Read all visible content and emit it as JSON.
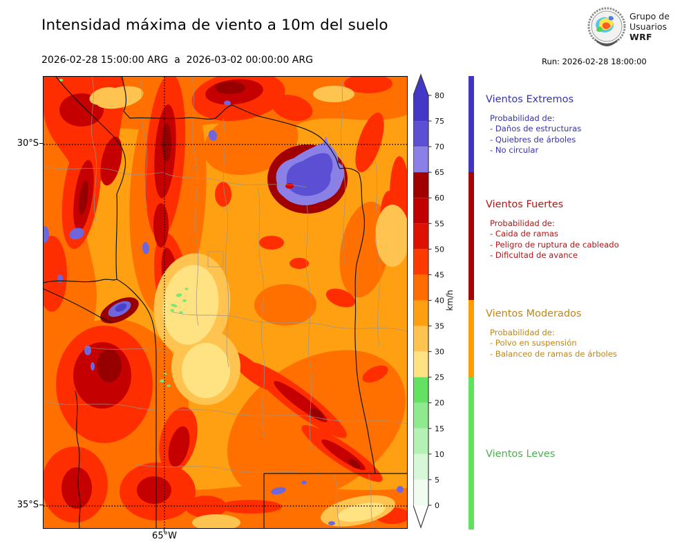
{
  "header": {
    "title": "Intensidad máxima de viento a 10m del suelo",
    "period": "2026-02-28 15:00:00 ARG  a  2026-03-02 00:00:00 ARG",
    "run": "Run: 2026-02-28 18:00:00",
    "logo": {
      "line1": "Grupo de",
      "line2": "Usuarios",
      "line3": "WRF"
    }
  },
  "map": {
    "lat_labels": [
      "30°S",
      "35°S"
    ],
    "lon_labels": [
      "65°W"
    ]
  },
  "colorbar": {
    "unit": "km/h",
    "tick_values": [
      80,
      75,
      70,
      65,
      60,
      55,
      50,
      45,
      40,
      35,
      30,
      25,
      20,
      15,
      10,
      5,
      0
    ],
    "value_min": 0,
    "value_max": 80,
    "over_color": "#4238C5",
    "under_color": "#FFFFFF",
    "segments": [
      {
        "from": 75,
        "to": 80,
        "color": "#4238C5"
      },
      {
        "from": 70,
        "to": 75,
        "color": "#5B50D3"
      },
      {
        "from": 65,
        "to": 70,
        "color": "#8A80E5"
      },
      {
        "from": 60,
        "to": 65,
        "color": "#A00000"
      },
      {
        "from": 55,
        "to": 60,
        "color": "#C00000"
      },
      {
        "from": 50,
        "to": 55,
        "color": "#E01000"
      },
      {
        "from": 45,
        "to": 50,
        "color": "#FF3A00"
      },
      {
        "from": 40,
        "to": 45,
        "color": "#FF6D00"
      },
      {
        "from": 35,
        "to": 40,
        "color": "#FFA013"
      },
      {
        "from": 30,
        "to": 35,
        "color": "#FFC34F"
      },
      {
        "from": 25,
        "to": 30,
        "color": "#FFE382"
      },
      {
        "from": 20,
        "to": 25,
        "color": "#63E163"
      },
      {
        "from": 15,
        "to": 20,
        "color": "#8FEA8F"
      },
      {
        "from": 10,
        "to": 15,
        "color": "#B4F1B4"
      },
      {
        "from": 5,
        "to": 10,
        "color": "#D7F8D7"
      },
      {
        "from": 0,
        "to": 5,
        "color": "#EFFCEF"
      }
    ]
  },
  "categories": [
    {
      "name": "Vientos Extremos",
      "text_color": "#3534AE",
      "bar_color": "#4334C6",
      "range_kmh": [
        65,
        90
      ],
      "prob_title": "Probabilidad de:",
      "items": [
        "- Daños de estructuras",
        "- Quiebres de árboles",
        "- No circular"
      ]
    },
    {
      "name": "Vientos Fuertes",
      "text_color": "#B01515",
      "bar_color": "#A50505",
      "range_kmh": [
        40,
        65
      ],
      "prob_title": "Probabilidad de:",
      "items": [
        "- Caida de ramas",
        "- Peligro de ruptura de cableado",
        "- Dificultad de avance"
      ]
    },
    {
      "name": "Vientos Moderados",
      "text_color": "#BE8617",
      "bar_color": "#FF9C00",
      "range_kmh": [
        25,
        40
      ],
      "prob_title": "Probabilidad de:",
      "items": [
        "- Polvo en suspensión",
        "- Balanceo de ramas de árboles"
      ]
    },
    {
      "name": "Vientos Leves",
      "text_color": "#4CAE50",
      "bar_color": "#5FE35F",
      "range_kmh": [
        -5,
        25
      ],
      "prob_title": "",
      "items": []
    }
  ]
}
